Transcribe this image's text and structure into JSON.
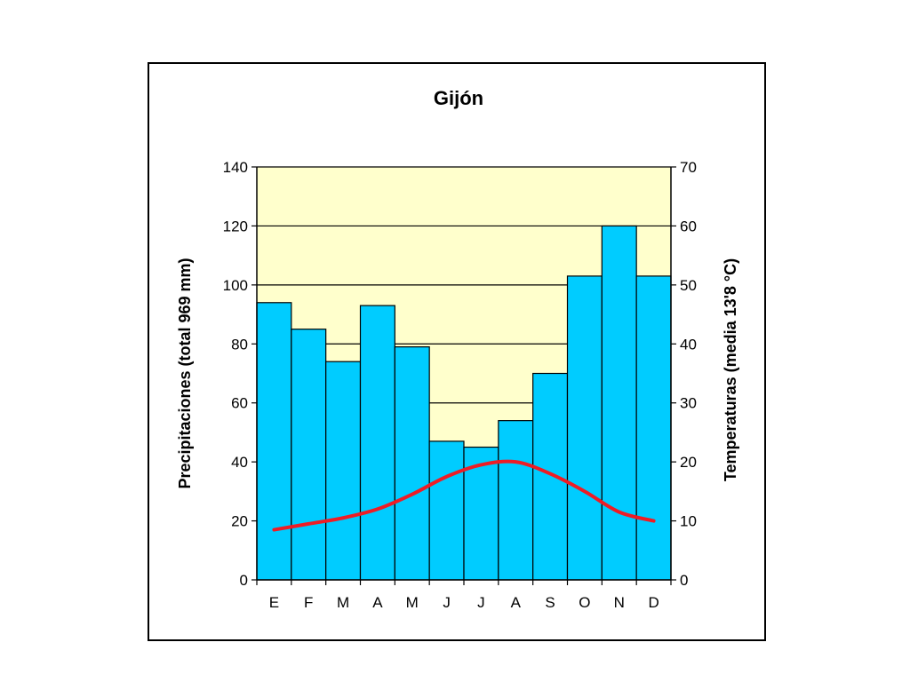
{
  "chart_data": {
    "type": "bar",
    "title": "Gijón",
    "categories": [
      "E",
      "F",
      "M",
      "A",
      "M",
      "J",
      "J",
      "A",
      "S",
      "O",
      "N",
      "D"
    ],
    "y_left": {
      "label": "Precipitaciones (total 969 mm)",
      "range": [
        0,
        140
      ],
      "ticks": [
        "0",
        "20",
        "40",
        "60",
        "80",
        "100",
        "120",
        "140"
      ]
    },
    "y_right": {
      "label": "Temperaturas (media 13'8 °C)",
      "range": [
        0,
        70
      ],
      "ticks": [
        "0",
        "10",
        "20",
        "30",
        "40",
        "50",
        "60",
        "70"
      ]
    },
    "series": [
      {
        "type": "bar",
        "axis": "left",
        "values": [
          94,
          85,
          74,
          93,
          79,
          47,
          45,
          54,
          70,
          103,
          120,
          103
        ],
        "color": "#00ccff"
      },
      {
        "type": "line",
        "axis": "right",
        "values": [
          8.5,
          9.5,
          10.5,
          12,
          14.5,
          17.5,
          19.5,
          20,
          18,
          15,
          11.5,
          10
        ],
        "color": "#ee1c25"
      }
    ],
    "plot_background": "#ffffcc",
    "gridlines": true,
    "legend": "none"
  }
}
